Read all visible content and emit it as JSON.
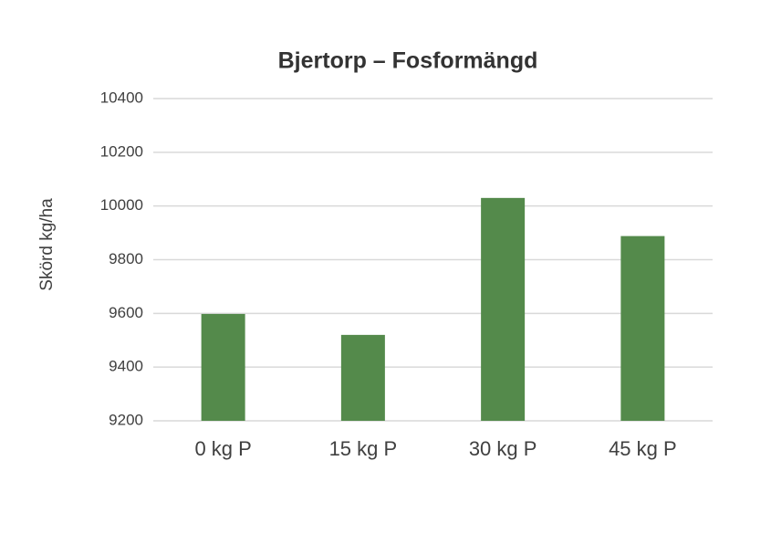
{
  "chart_data": {
    "type": "bar",
    "title": "Bjertorp – Fosformängd",
    "y_label": "Skörd kg/ha",
    "categories": [
      "0 kg P",
      "15 kg P",
      "30 kg P",
      "45 kg P"
    ],
    "values": [
      9598,
      9520,
      10030,
      9888
    ],
    "color": "#548a4b",
    "ylim": [
      9200,
      10400
    ],
    "yticks": [
      9200,
      9400,
      9600,
      9800,
      10000,
      10200,
      10400
    ],
    "grid": true
  }
}
